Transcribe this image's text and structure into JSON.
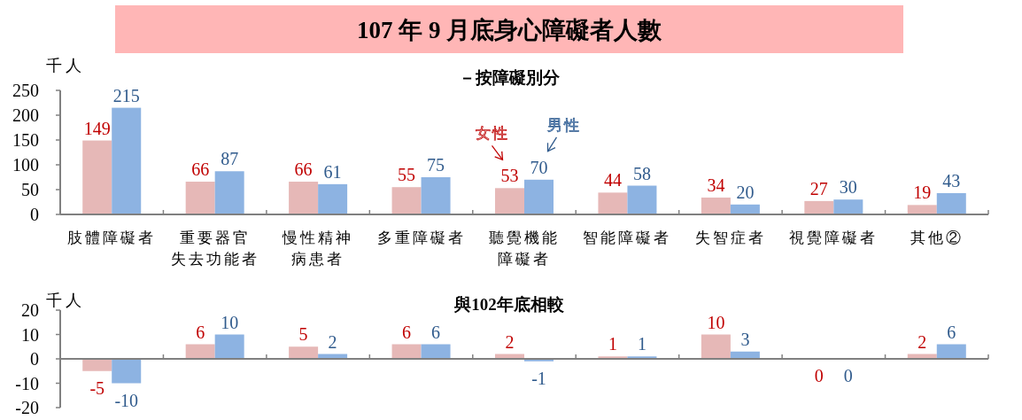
{
  "chart_data": [
    {
      "type": "bar",
      "title": "107 年 9 月底身心障礙者人數",
      "subtitle": "－按障礙別分",
      "ylabel": "千人",
      "categories": [
        "肢體障礙者",
        "重要器官失去功能者",
        "慢性精神病患者",
        "多重障礙者",
        "聽覺機能障礙者",
        "智能障礙者",
        "失智症者",
        "視覺障礙者",
        "其他②"
      ],
      "series": [
        {
          "name": "女性",
          "color": "#e6b8b7",
          "values": [
            149,
            66,
            66,
            55,
            53,
            44,
            34,
            27,
            19
          ]
        },
        {
          "name": "男性",
          "color": "#8db3e2",
          "values": [
            215,
            87,
            61,
            75,
            70,
            58,
            20,
            30,
            43
          ]
        }
      ],
      "ylim": [
        0,
        250
      ],
      "yticks": [
        0,
        50,
        100,
        150,
        200,
        250
      ],
      "data_labels": true,
      "grid": false
    },
    {
      "type": "bar",
      "title": "與102年底相較",
      "ylabel": "千人",
      "categories": [
        null,
        null,
        null,
        null,
        null,
        null,
        null,
        null,
        null
      ],
      "series": [
        {
          "color": "#e6b8b7",
          "values": [
            -5,
            6,
            5,
            6,
            2,
            1,
            10,
            0,
            2
          ]
        },
        {
          "color": "#8db3e2",
          "values": [
            -10,
            10,
            2,
            6,
            -1,
            1,
            3,
            0,
            6
          ]
        }
      ],
      "ylim": [
        -20,
        20
      ],
      "yticks": [
        -20,
        -10,
        0,
        10,
        20
      ],
      "data_labels": true
    }
  ]
}
